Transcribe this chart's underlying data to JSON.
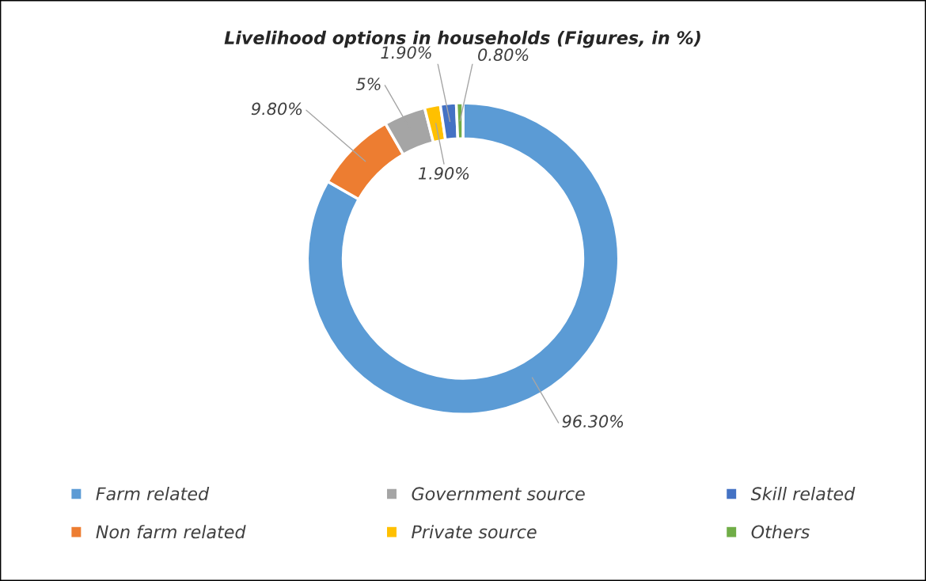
{
  "chart_data": {
    "type": "donut",
    "title": "Livelihood options in households (Figures, in %)",
    "categories": [
      "Farm related",
      "Non farm related",
      "Government source",
      "Private source",
      "Skill related",
      "Others"
    ],
    "values": [
      96.3,
      9.8,
      5,
      1.9,
      1.9,
      0.8
    ],
    "value_labels": [
      "96.30%",
      "9.80%",
      "5%",
      "1.90%",
      "1.90%",
      "0.80%"
    ],
    "colors": [
      "#5b9bd5",
      "#ed7d31",
      "#a5a5a5",
      "#ffc000",
      "#4472c4",
      "#70ad47"
    ],
    "legend": "bottom"
  }
}
